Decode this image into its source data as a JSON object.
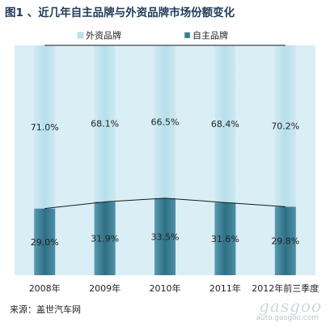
{
  "title": "图1 、近几年自主品牌与外资品牌市场份额变化",
  "source": "来源：盖世汽车网",
  "watermark": {
    "logo": "gasgoo",
    "tagline": "盖世汽车网",
    "url": "auto.gasgoo.com"
  },
  "chart_data": {
    "type": "bar",
    "stacked": true,
    "categories": [
      "2008年",
      "2009年",
      "2010年",
      "2011年",
      "2012年前三季度"
    ],
    "series": [
      {
        "name": "自主品牌",
        "values": [
          29.0,
          31.9,
          33.5,
          31.6,
          29.8
        ],
        "labels": [
          "29.0%",
          "31.9%",
          "33.5%",
          "31.6%",
          "29.8%"
        ],
        "color": "#3a7d92"
      },
      {
        "name": "外资品牌",
        "values": [
          71.0,
          68.1,
          66.5,
          68.4,
          70.2
        ],
        "labels": [
          "71.0%",
          "68.1%",
          "66.5%",
          "68.4%",
          "70.2%"
        ],
        "color": "#bfe3ee"
      }
    ],
    "ylim": [
      0,
      100
    ],
    "legend_position": "top",
    "series_lines": true,
    "plot_background": "#d9eef5",
    "title": "",
    "xlabel": "",
    "ylabel": ""
  }
}
